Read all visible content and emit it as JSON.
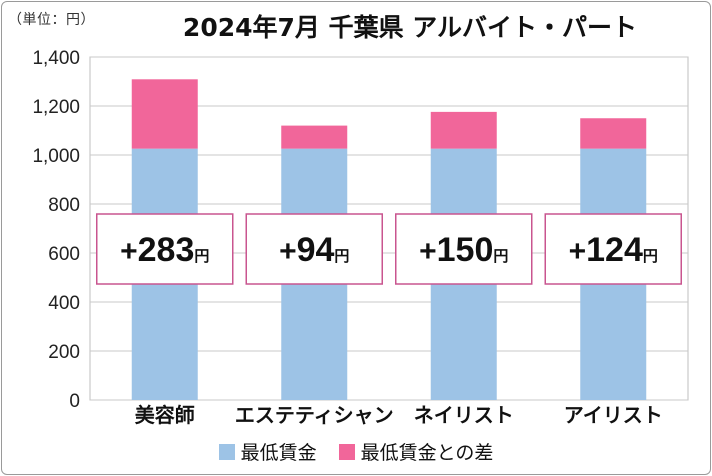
{
  "chart_data": {
    "type": "bar",
    "stacked": true,
    "title": "2024年7月 千葉県 アルバイト・パート",
    "unit_label": "（単位：円）",
    "categories": [
      "美容師",
      "エステティシャン",
      "ネイリスト",
      "アイリスト"
    ],
    "series": [
      {
        "name": "最低賃金",
        "color": "#9dc3e6",
        "values": [
          1026,
          1026,
          1026,
          1026
        ]
      },
      {
        "name": "最低賃金との差",
        "color": "#f1669a",
        "values": [
          283,
          94,
          150,
          124
        ]
      }
    ],
    "annotations": [
      {
        "sign": "+",
        "number": "283",
        "unit": "円"
      },
      {
        "sign": "+",
        "number": "94",
        "unit": "円"
      },
      {
        "sign": "+",
        "number": "150",
        "unit": "円"
      },
      {
        "sign": "+",
        "number": "124",
        "unit": "円"
      }
    ],
    "yticks": [
      "0",
      "200",
      "400",
      "600",
      "800",
      "1,000",
      "1,200",
      "1,400"
    ],
    "ylim": [
      0,
      1400
    ],
    "grid": true,
    "legend_position": "bottom",
    "annotation_border_color": "#c9558f"
  }
}
